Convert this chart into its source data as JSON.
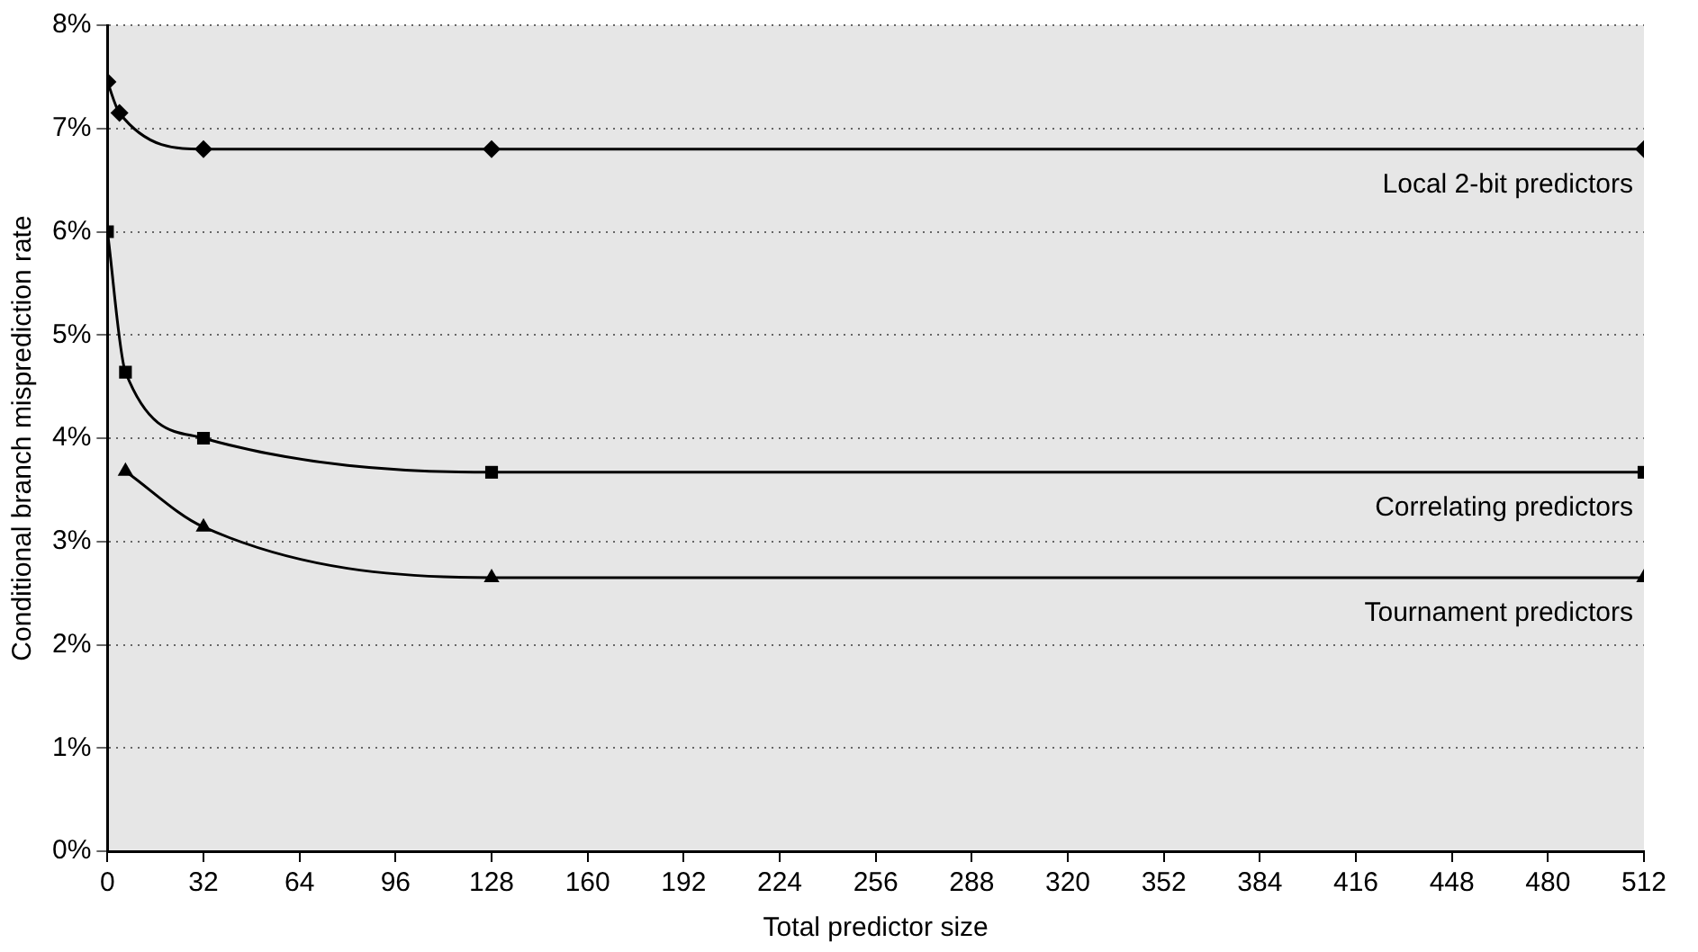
{
  "chart_data": {
    "type": "line",
    "xlabel": "Total predictor size",
    "ylabel": "Conditional branch misprediction rate",
    "xlim": [
      0,
      512
    ],
    "xticks": [
      0,
      32,
      64,
      96,
      128,
      160,
      192,
      224,
      256,
      288,
      320,
      352,
      384,
      416,
      448,
      480,
      512
    ],
    "ylim": [
      0,
      8
    ],
    "yticks": [
      {
        "value": 0,
        "label": "0%"
      },
      {
        "value": 1,
        "label": "1%"
      },
      {
        "value": 2,
        "label": "2%"
      },
      {
        "value": 3,
        "label": "3%"
      },
      {
        "value": 4,
        "label": "4%"
      },
      {
        "value": 5,
        "label": "5%"
      },
      {
        "value": 6,
        "label": "6%"
      },
      {
        "value": 7,
        "label": "7%"
      },
      {
        "value": 8,
        "label": "8%"
      }
    ],
    "grid": "y",
    "legend": false,
    "line_style": "solid",
    "series": [
      {
        "color": "#000000",
        "marker": "diamond",
        "x": [
          0,
          4,
          32,
          128,
          512
        ],
        "values": [
          7.45,
          7.15,
          6.8,
          6.8,
          6.8
        ]
      },
      {
        "color": "#000000",
        "marker": "square",
        "x": [
          0,
          6,
          32,
          128,
          512
        ],
        "values": [
          6.0,
          4.64,
          4.0,
          3.67,
          3.67
        ]
      },
      {
        "color": "#000000",
        "marker": "triangle",
        "x": [
          6,
          32,
          128,
          512
        ],
        "values": [
          3.68,
          3.14,
          2.65,
          2.65
        ]
      }
    ],
    "annotations": [
      "Local 2-bit predictors",
      "Correlating predictors",
      "Tournament predictors"
    ]
  }
}
